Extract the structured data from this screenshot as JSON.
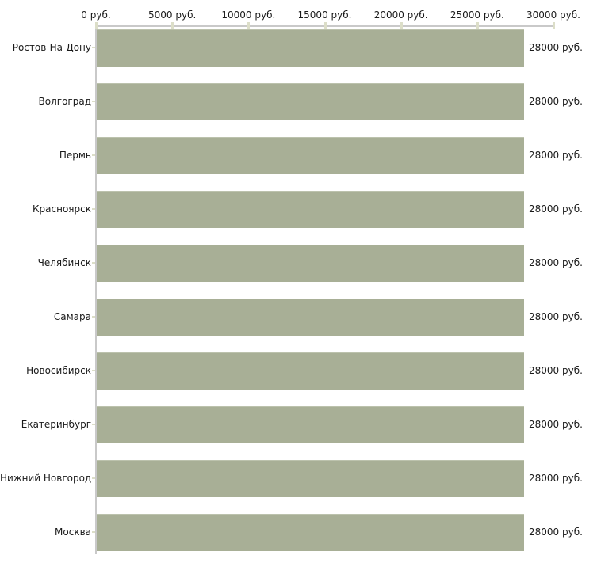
{
  "chart_data": {
    "type": "bar",
    "orientation": "horizontal",
    "title": "",
    "xlabel": "",
    "ylabel": "",
    "categories": [
      "Ростов-На-Дону",
      "Волгоград",
      "Пермь",
      "Красноярск",
      "Челябинск",
      "Самара",
      "Новосибирск",
      "Екатеринбург",
      "Нижний Новгород",
      "Москва"
    ],
    "values": [
      28000,
      28000,
      28000,
      28000,
      28000,
      28000,
      28000,
      28000,
      28000,
      28000
    ],
    "value_labels": [
      "28000 руб.",
      "28000 руб.",
      "28000 руб.",
      "28000 руб.",
      "28000 руб.",
      "28000 руб.",
      "28000 руб.",
      "28000 руб.",
      "28000 руб.",
      "28000 руб."
    ],
    "x_ticks": [
      0,
      5000,
      10000,
      15000,
      20000,
      25000,
      30000
    ],
    "x_tick_labels": [
      "0 руб.",
      "5000 руб.",
      "10000 руб.",
      "15000 руб.",
      "20000 руб.",
      "25000 руб.",
      "30000 руб."
    ],
    "xlim": [
      0,
      30000
    ],
    "grid": false,
    "legend_position": "none",
    "axis_position": "top",
    "colors": {
      "bar_fill": "#a8af96",
      "bar_top_highlight": "#bcc2ad",
      "axis_line": "#c9c9c9",
      "tick_mark": "#dcdec8",
      "text": "#1a1a1a",
      "background": "#ffffff"
    }
  }
}
